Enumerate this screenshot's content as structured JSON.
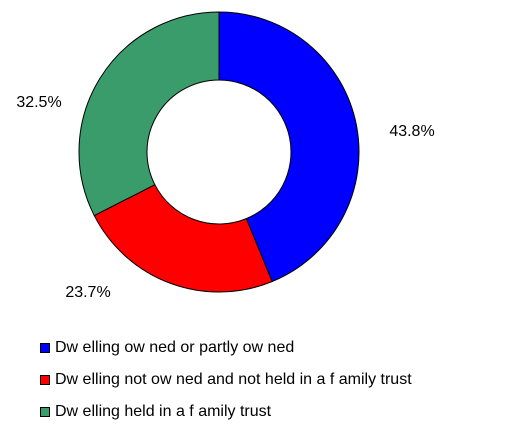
{
  "chart_data": {
    "type": "pie",
    "variant": "donut",
    "title": "",
    "categories": [
      "Dw elling ow ned or partly ow ned",
      "Dw elling not ow ned and not held in a f amily trust",
      "Dw elling held in a f amily trust"
    ],
    "values": [
      43.8,
      23.7,
      32.5
    ],
    "labels": [
      "43.8%",
      "23.7%",
      "32.5%"
    ],
    "colors": [
      "#0000FF",
      "#FF0000",
      "#3A9C6B"
    ],
    "legend_position": "bottom-left"
  }
}
